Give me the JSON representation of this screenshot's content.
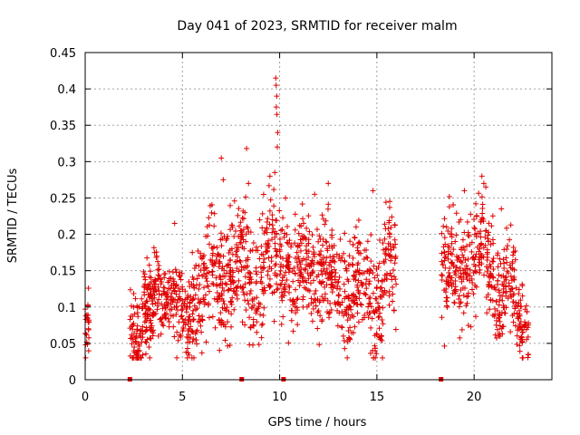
{
  "chart_data": {
    "type": "scatter",
    "title": "Day 041 of 2023, SRMTID for receiver malm",
    "xlabel": "GPS time / hours",
    "ylabel": "SRMTID / TECUs",
    "xlim": [
      0,
      24
    ],
    "ylim": [
      0,
      0.45
    ],
    "xticks": [
      0,
      5,
      10,
      15,
      20
    ],
    "xtick_labels": [
      "0",
      "5",
      "10",
      "15",
      "20"
    ],
    "yticks": [
      0,
      0.05,
      0.1,
      0.15,
      0.2,
      0.25,
      0.3,
      0.35,
      0.4,
      0.45
    ],
    "ytick_labels": [
      "0",
      "0.05",
      "0.1",
      "0.15",
      "0.2",
      "0.25",
      "0.3",
      "0.35",
      "0.4",
      "0.45"
    ],
    "grid": true,
    "marker": "+",
    "color": "#e00000",
    "segments": [
      {
        "start": 0.0,
        "end": 0.2,
        "base": 0.07,
        "spread": 0.02
      },
      {
        "start": 2.3,
        "end": 3.5,
        "base": 0.07,
        "spread": 0.025
      },
      {
        "start": 3.0,
        "end": 4.7,
        "base": 0.12,
        "spread": 0.025
      },
      {
        "start": 4.7,
        "end": 5.6,
        "base": 0.085,
        "spread": 0.03
      },
      {
        "start": 5.5,
        "end": 7.5,
        "base": 0.14,
        "spread": 0.04
      },
      {
        "start": 7.5,
        "end": 9.0,
        "base": 0.15,
        "spread": 0.045
      },
      {
        "start": 9.0,
        "end": 10.5,
        "base": 0.16,
        "spread": 0.04
      },
      {
        "start": 10.5,
        "end": 12.5,
        "base": 0.15,
        "spread": 0.04
      },
      {
        "start": 12.5,
        "end": 14.5,
        "base": 0.13,
        "spread": 0.035
      },
      {
        "start": 14.5,
        "end": 15.3,
        "base": 0.11,
        "spread": 0.04
      },
      {
        "start": 15.3,
        "end": 16.0,
        "base": 0.15,
        "spread": 0.035
      },
      {
        "start": 18.3,
        "end": 19.3,
        "base": 0.14,
        "spread": 0.035
      },
      {
        "start": 19.3,
        "end": 21.0,
        "base": 0.16,
        "spread": 0.035
      },
      {
        "start": 21.0,
        "end": 22.2,
        "base": 0.12,
        "spread": 0.035
      },
      {
        "start": 22.2,
        "end": 22.8,
        "base": 0.08,
        "spread": 0.025
      }
    ],
    "spikes": [
      {
        "x": 7.0,
        "y": 0.305
      },
      {
        "x": 7.1,
        "y": 0.275
      },
      {
        "x": 8.3,
        "y": 0.318
      },
      {
        "x": 8.4,
        "y": 0.27
      },
      {
        "x": 9.5,
        "y": 0.28
      },
      {
        "x": 9.8,
        "y": 0.415
      },
      {
        "x": 9.82,
        "y": 0.405
      },
      {
        "x": 9.85,
        "y": 0.39
      },
      {
        "x": 9.83,
        "y": 0.375
      },
      {
        "x": 9.86,
        "y": 0.365
      },
      {
        "x": 9.9,
        "y": 0.34
      },
      {
        "x": 9.88,
        "y": 0.32
      },
      {
        "x": 9.75,
        "y": 0.285
      },
      {
        "x": 12.5,
        "y": 0.27
      },
      {
        "x": 14.8,
        "y": 0.26
      },
      {
        "x": 19.5,
        "y": 0.26
      },
      {
        "x": 20.4,
        "y": 0.28
      },
      {
        "x": 20.5,
        "y": 0.27
      },
      {
        "x": 20.6,
        "y": 0.265
      },
      {
        "x": 21.4,
        "y": 0.235
      },
      {
        "x": 4.6,
        "y": 0.215
      },
      {
        "x": 11.8,
        "y": 0.255
      },
      {
        "x": 10.3,
        "y": 0.25
      }
    ],
    "gap_markers_x": [
      2.3,
      8.05,
      10.2,
      18.3
    ]
  }
}
